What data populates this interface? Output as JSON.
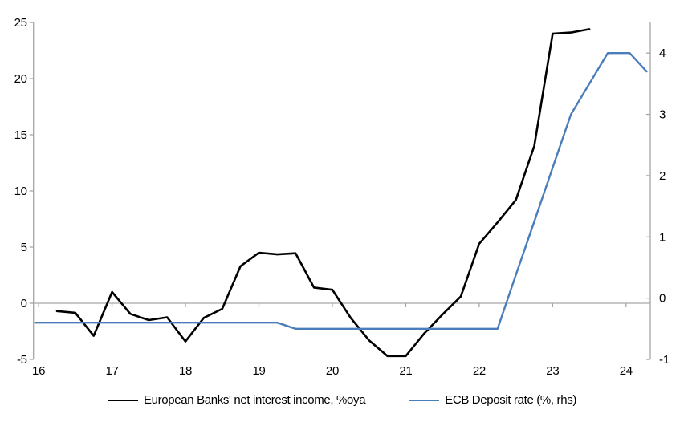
{
  "chart_data": {
    "type": "line",
    "title": "",
    "xlabel": "",
    "ylabel_left": "",
    "ylabel_right": "",
    "grid": "zero-line-only",
    "legend_position": "bottom",
    "x_axis": {
      "ticks": [
        16,
        17,
        18,
        19,
        20,
        21,
        22,
        23,
        24
      ],
      "range": [
        15.93,
        24.33
      ]
    },
    "y_axis_left": {
      "ticks": [
        -5,
        0,
        5,
        10,
        15,
        20,
        25
      ],
      "range": [
        -5,
        25
      ]
    },
    "y_axis_right": {
      "ticks": [
        -1,
        0,
        1,
        2,
        3,
        4
      ],
      "range": [
        -1,
        4.5
      ]
    },
    "series": [
      {
        "name": "European Banks' net interest income, %oya",
        "axis": "left",
        "color": "#000000",
        "width": 2.6,
        "x": [
          16.25,
          16.5,
          16.75,
          17.0,
          17.25,
          17.5,
          17.75,
          18.0,
          18.25,
          18.5,
          18.75,
          19.0,
          19.25,
          19.5,
          19.75,
          20.0,
          20.25,
          20.5,
          20.75,
          21.0,
          21.25,
          21.5,
          21.75,
          22.0,
          22.25,
          22.5,
          22.75,
          23.0,
          23.25,
          23.5
        ],
        "values": [
          -0.7,
          -0.85,
          -2.9,
          1.0,
          -0.95,
          -1.5,
          -1.25,
          -3.4,
          -1.3,
          -0.5,
          3.3,
          4.5,
          4.35,
          4.45,
          1.4,
          1.2,
          -1.3,
          -3.3,
          -4.7,
          -4.7,
          -2.7,
          -1.0,
          0.6,
          5.3,
          7.2,
          9.2,
          14.0,
          24.0,
          24.1,
          24.4
        ]
      },
      {
        "name": "ECB Deposit rate (%, rhs)",
        "axis": "right",
        "color": "#4a7ebb",
        "width": 2.4,
        "x": [
          15.95,
          19.25,
          19.5,
          22.25,
          22.5,
          22.75,
          23.0,
          23.25,
          23.5,
          23.75,
          24.05,
          24.28
        ],
        "values": [
          -0.4,
          -0.4,
          -0.5,
          -0.5,
          0.38,
          1.25,
          2.13,
          3.0,
          3.5,
          4.0,
          4.0,
          3.7
        ]
      }
    ]
  },
  "colors": {
    "background": "#ffffff",
    "axis": "#a6a6a6",
    "zero_line": "#a6a6a6",
    "series1": "#000000",
    "series2": "#4a7ebb",
    "text": "#000000"
  }
}
